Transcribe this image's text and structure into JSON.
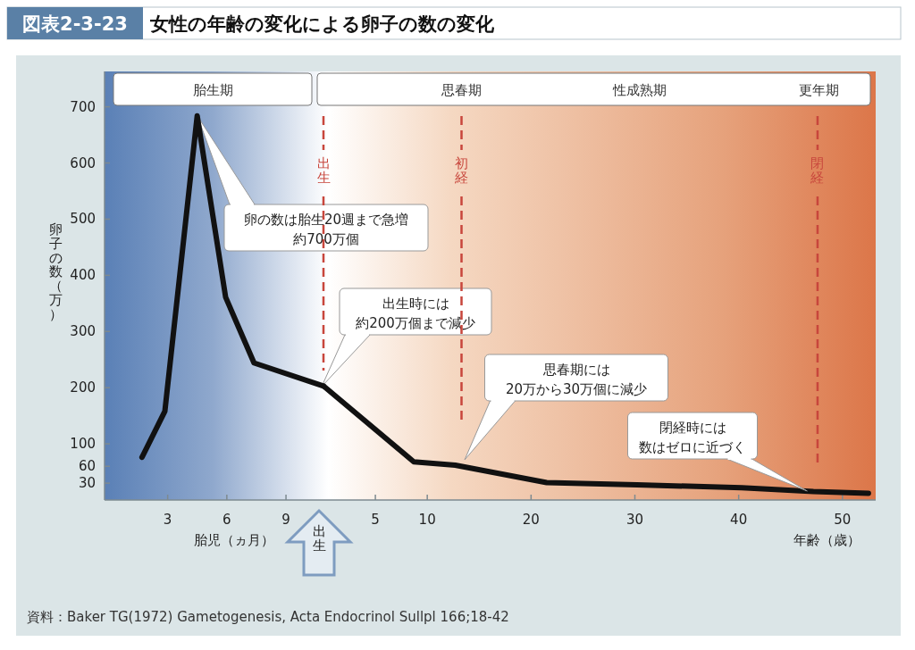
{
  "chart_data": [
    {
      "type": "line",
      "title": "女性の年齢の変化による卵子の数の変化",
      "subtitle": "図表2-3-23",
      "xlabel": "胎児（ヵ月）",
      "ylabel": "卵子の数（万）",
      "x": [
        1.7,
        2.86,
        4.5,
        5.94,
        7.38,
        10.9
      ],
      "series": [
        {
          "color": "#111111",
          "values": [
            76,
            158,
            684,
            361,
            244,
            203
          ]
        }
      ],
      "xlim": [
        -0.2,
        10.9
      ],
      "xticks": [
        3,
        6,
        9
      ],
      "ylim": [
        0,
        763
      ],
      "yticks": [
        30,
        60,
        100,
        200,
        300,
        400,
        500,
        600,
        700
      ],
      "ref_lines": [
        {
          "axis": "x",
          "value": 10.9,
          "label": "出生",
          "color": "#c8463c",
          "line_style": "dashed"
        }
      ],
      "annotations": [
        "胎生期",
        "出生",
        "資料：Baker TG(1972) Gametogenesis, Acta Endocrinol Sullpl 166;18-42",
        "卵の数は胎生20週まで急増約700万個"
      ],
      "grid": false,
      "marker": "none",
      "line_style": "solid"
    },
    {
      "type": "line",
      "xlabel": "年齢（歳）",
      "x": [
        0,
        8.7,
        12.7,
        21.5,
        30.2,
        40.3,
        47.2,
        52.5
      ],
      "series": [
        {
          "color": "#111111",
          "values": [
            203,
            68,
            62,
            31,
            27,
            22,
            15,
            12
          ]
        }
      ],
      "xlim": [
        0,
        53.2
      ],
      "xticks": [
        5,
        10,
        20,
        30,
        40,
        50
      ],
      "ylim": [
        0,
        763
      ],
      "tick_labels": "x",
      "ref_lines": [
        {
          "axis": "x",
          "value": 13.3,
          "label": "初経",
          "color": "#c8463c",
          "line_style": "dashed"
        },
        {
          "axis": "x",
          "value": 47.6,
          "label": "閉経",
          "color": "#c8463c",
          "line_style": "dashed"
        }
      ],
      "annotations": [
        "思春期",
        "性成熟期",
        "更年期",
        "出生時には約200万個まで減少",
        "思春期には20万から30万個に減少",
        {
          "text": "閉経時には数はゼロに近づく",
          "x": 46.6,
          "y": 16
        }
      ],
      "grid": false,
      "marker": "none",
      "line_style": "solid"
    }
  ]
}
